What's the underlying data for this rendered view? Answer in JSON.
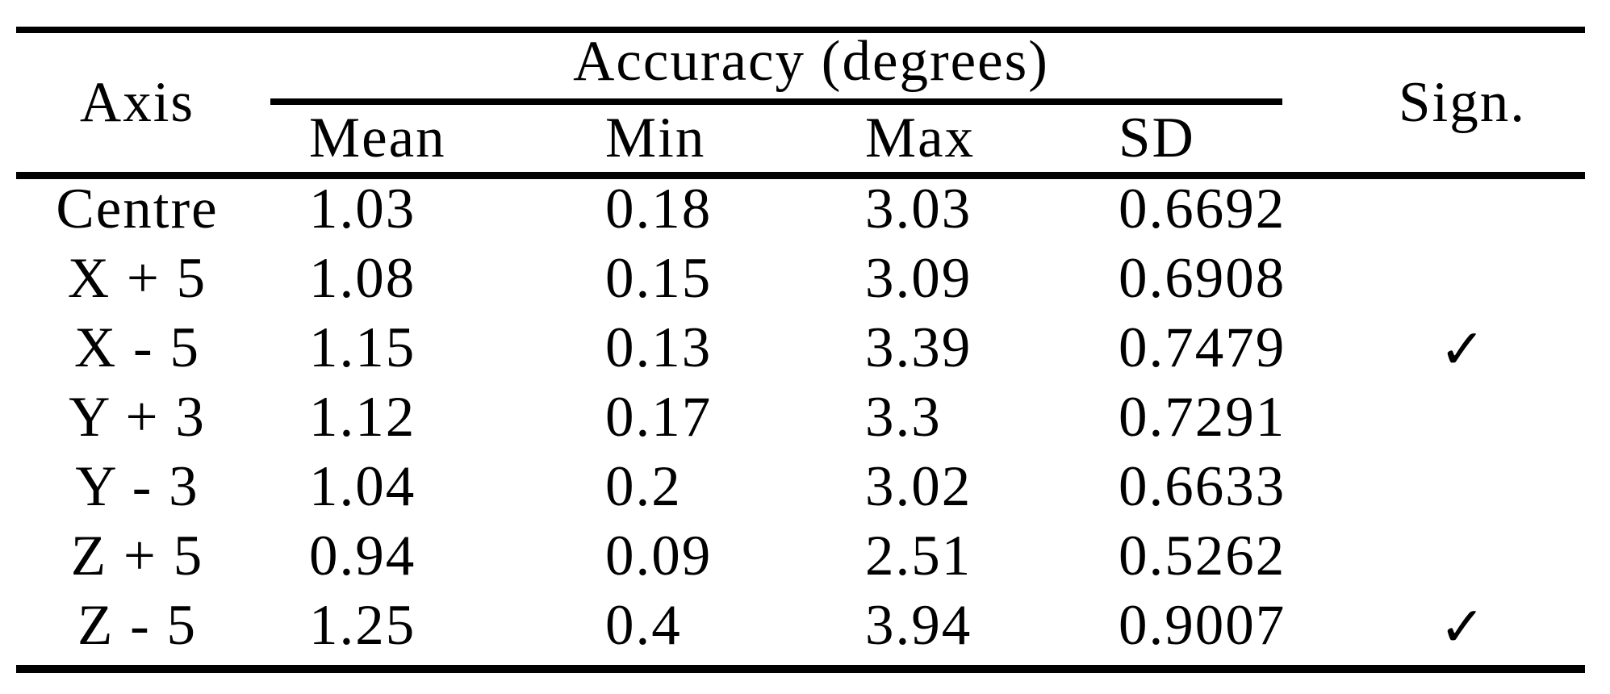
{
  "table": {
    "axis_header": "Axis",
    "accuracy_group_header": "Accuracy (degrees)",
    "sign_header": "Sign.",
    "sub_headers": [
      "Mean",
      "Min",
      "Max",
      "SD"
    ],
    "rows": [
      {
        "axis": "Centre",
        "mean": "1.03",
        "min": "0.18",
        "max": "3.03",
        "sd": "0.6692",
        "sign": ""
      },
      {
        "axis": "X + 5",
        "mean": "1.08",
        "min": "0.15",
        "max": "3.09",
        "sd": "0.6908",
        "sign": ""
      },
      {
        "axis": "X - 5",
        "mean": "1.15",
        "min": "0.13",
        "max": "3.39",
        "sd": "0.7479",
        "sign": "✓"
      },
      {
        "axis": "Y + 3",
        "mean": "1.12",
        "min": "0.17",
        "max": "3.3",
        "sd": "0.7291",
        "sign": ""
      },
      {
        "axis": "Y - 3",
        "mean": "1.04",
        "min": "0.2",
        "max": "3.02",
        "sd": "0.6633",
        "sign": ""
      },
      {
        "axis": "Z + 5",
        "mean": "0.94",
        "min": "0.09",
        "max": "2.51",
        "sd": "0.5262",
        "sign": ""
      },
      {
        "axis": "Z - 5",
        "mean": "1.25",
        "min": "0.4",
        "max": "3.94",
        "sd": "0.9007",
        "sign": "✓"
      }
    ]
  },
  "colors": {
    "text": "#000000",
    "background": "#ffffff",
    "rule": "#000000"
  },
  "chart_data": {
    "type": "table",
    "column_groups": [
      {
        "label": "Accuracy (degrees)",
        "columns": [
          "Mean",
          "Min",
          "Max",
          "SD"
        ]
      }
    ],
    "columns": [
      "Axis",
      "Mean",
      "Min",
      "Max",
      "SD",
      "Sign."
    ],
    "rows": [
      [
        "Centre",
        "1.03",
        "0.18",
        "3.03",
        "0.6692",
        ""
      ],
      [
        "X + 5",
        "1.08",
        "0.15",
        "3.09",
        "0.6908",
        ""
      ],
      [
        "X - 5",
        "1.15",
        "0.13",
        "3.39",
        "0.7479",
        "✓"
      ],
      [
        "Y + 3",
        "1.12",
        "0.17",
        "3.3",
        "0.7291",
        ""
      ],
      [
        "Y - 3",
        "1.04",
        "0.2",
        "3.02",
        "0.6633",
        ""
      ],
      [
        "Z + 5",
        "0.94",
        "0.09",
        "2.51",
        "0.5262",
        ""
      ],
      [
        "Z - 5",
        "1.25",
        "0.4",
        "3.94",
        "0.9007",
        "✓"
      ]
    ]
  }
}
